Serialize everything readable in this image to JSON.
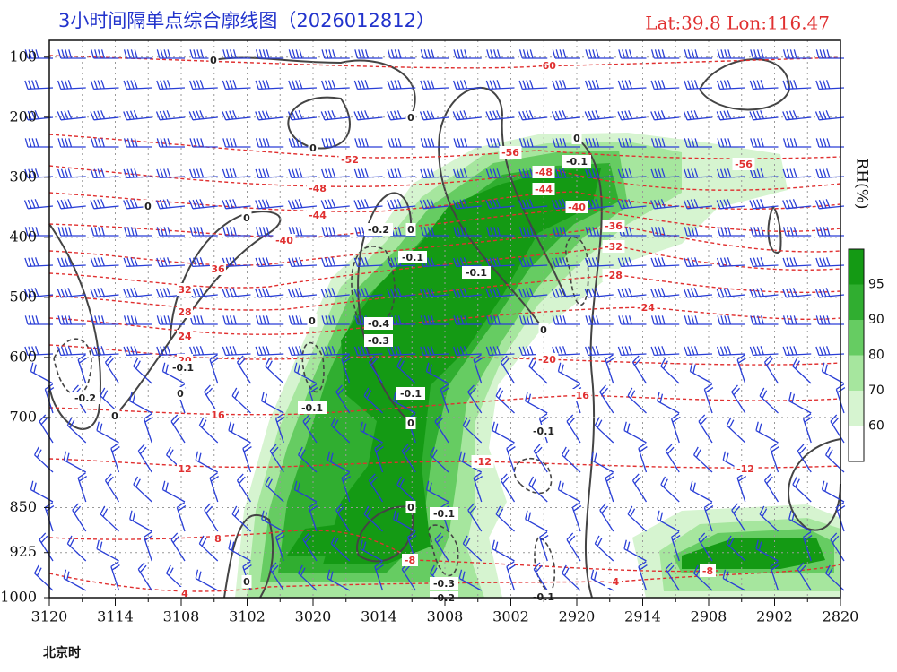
{
  "chart_data": {
    "type": "cross-section",
    "title": "3小时间隔单点综合廓线图（2026012812）",
    "subtitle": "Lat:39.8  Lon:116.47",
    "x_note": "北京时",
    "categories": [
      "3120",
      null,
      "3114",
      null,
      "3108",
      null,
      "3102",
      null,
      "3020",
      null,
      "3014",
      null,
      "3008",
      null,
      "3002",
      null,
      "2920",
      null,
      "2914",
      null,
      "2908",
      null,
      "2902",
      null,
      "2820"
    ],
    "ylim": [
      1000,
      72
    ],
    "yticks": [
      100,
      200,
      300,
      400,
      500,
      600,
      700,
      850,
      925,
      1000
    ],
    "grid": true,
    "colorbar": {
      "label": "RH(%)",
      "ticks": [
        60,
        70,
        80,
        90,
        95
      ],
      "colors": [
        "#ffffff",
        "#d6f4d0",
        "#a6e69e",
        "#66cc62",
        "#30ae30",
        "#149a14"
      ]
    },
    "temperature_color": "#e03030",
    "temperature_labels": [
      "-60",
      "-56",
      "-52",
      "-48",
      "-44",
      "-40",
      "36",
      "32",
      "28",
      "24",
      "20",
      "16",
      "12",
      "8",
      "4",
      "-48",
      "-44",
      "-40",
      "-36",
      "-32",
      "-28",
      "-24",
      "-20",
      "-16",
      "-12",
      "-12",
      "-8",
      "-8",
      "-4",
      "-56"
    ],
    "vertical_velocity_color": "#222222",
    "vertical_velocity_labels": [
      "0",
      "0",
      "0",
      "0",
      "0",
      "0",
      "0",
      "0",
      "0",
      "0",
      "0",
      "0",
      "0",
      "0",
      "-0.1",
      "-0.2",
      "-0.1",
      "-0.1",
      "-0.4",
      "-0.3",
      "-0.1",
      "-0.2",
      "-0.1",
      "-0.1",
      "-0.1",
      "-0.1",
      "-0.3",
      "-0.2",
      "-0.1"
    ]
  }
}
